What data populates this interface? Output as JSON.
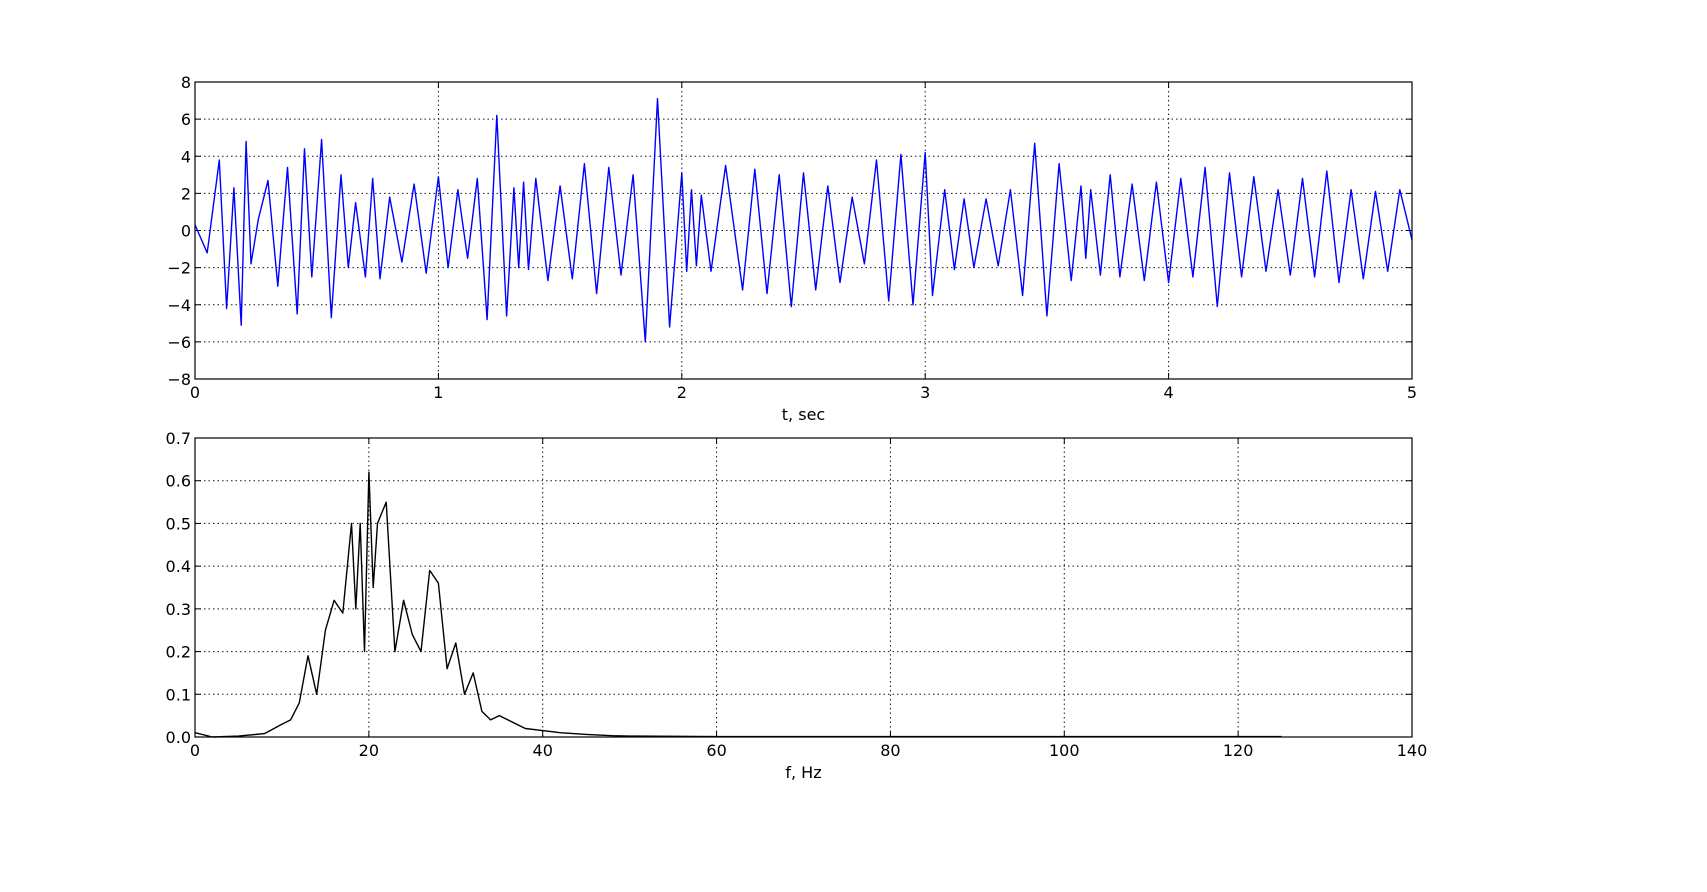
{
  "chart_data": [
    {
      "type": "line",
      "id": "time-signal",
      "title": "",
      "xlabel": "t, sec",
      "ylabel": "",
      "xlim": [
        0,
        5
      ],
      "ylim": [
        -8,
        8
      ],
      "xticks": [
        0,
        1,
        2,
        3,
        4,
        5
      ],
      "yticks": [
        -8,
        -6,
        -4,
        -2,
        0,
        2,
        4,
        6,
        8
      ],
      "grid": true,
      "color": "#0000ff",
      "series": [
        {
          "x": [
            0,
            0.05,
            0.1,
            0.13,
            0.16,
            0.19,
            0.21,
            0.23,
            0.26,
            0.3,
            0.34,
            0.38,
            0.42,
            0.45,
            0.48,
            0.52,
            0.56,
            0.6,
            0.63,
            0.66,
            0.7,
            0.73,
            0.76,
            0.8,
            0.85,
            0.9,
            0.95,
            1.0,
            1.04,
            1.08,
            1.12,
            1.16,
            1.2,
            1.24,
            1.28,
            1.31,
            1.33,
            1.35,
            1.37,
            1.4,
            1.45,
            1.5,
            1.55,
            1.6,
            1.65,
            1.7,
            1.75,
            1.8,
            1.85,
            1.9,
            1.95,
            2.0,
            2.02,
            2.04,
            2.06,
            2.08,
            2.12,
            2.18,
            2.25,
            2.3,
            2.35,
            2.4,
            2.45,
            2.5,
            2.55,
            2.6,
            2.65,
            2.7,
            2.75,
            2.8,
            2.85,
            2.9,
            2.95,
            3.0,
            3.03,
            3.08,
            3.12,
            3.16,
            3.2,
            3.25,
            3.3,
            3.35,
            3.4,
            3.45,
            3.5,
            3.55,
            3.6,
            3.64,
            3.66,
            3.68,
            3.72,
            3.76,
            3.8,
            3.85,
            3.9,
            3.95,
            4.0,
            4.05,
            4.1,
            4.15,
            4.2,
            4.25,
            4.3,
            4.35,
            4.4,
            4.45,
            4.5,
            4.55,
            4.6,
            4.65,
            4.7,
            4.75,
            4.8,
            4.85,
            4.9,
            4.95,
            5.0
          ],
          "y": [
            0.3,
            -1.2,
            3.8,
            -4.2,
            2.3,
            -5.1,
            4.8,
            -1.8,
            0.6,
            2.7,
            -3.0,
            3.4,
            -4.5,
            4.4,
            -2.5,
            4.9,
            -4.7,
            3.0,
            -2.0,
            1.5,
            -2.5,
            2.8,
            -2.6,
            1.8,
            -1.7,
            2.5,
            -2.3,
            2.9,
            -2.0,
            2.2,
            -1.5,
            2.8,
            -4.8,
            6.2,
            -4.6,
            2.3,
            -2.0,
            2.6,
            -2.1,
            2.8,
            -2.7,
            2.4,
            -2.6,
            3.6,
            -3.4,
            3.4,
            -2.4,
            3.0,
            -6.0,
            7.1,
            -5.2,
            3.1,
            -2.2,
            2.2,
            -1.9,
            1.9,
            -2.2,
            3.5,
            -3.2,
            3.3,
            -3.4,
            3.0,
            -4.1,
            3.1,
            -3.2,
            2.4,
            -2.8,
            1.8,
            -1.8,
            3.8,
            -3.8,
            4.1,
            -4.0,
            4.2,
            -3.5,
            2.2,
            -2.1,
            1.7,
            -2.0,
            1.7,
            -1.9,
            2.2,
            -3.5,
            4.7,
            -4.6,
            3.6,
            -2.7,
            2.4,
            -1.5,
            2.2,
            -2.4,
            3.0,
            -2.5,
            2.5,
            -2.7,
            2.6,
            -2.8,
            2.8,
            -2.5,
            3.4,
            -4.1,
            3.1,
            -2.5,
            2.9,
            -2.2,
            2.2,
            -2.4,
            2.8,
            -2.5,
            3.2,
            -2.8,
            2.2,
            -2.6,
            2.1,
            -2.2,
            2.2,
            -0.5
          ]
        }
      ]
    },
    {
      "type": "line",
      "id": "spectrum",
      "title": "",
      "xlabel": "f, Hz",
      "ylabel": "",
      "xlim": [
        0,
        140
      ],
      "ylim": [
        0,
        0.7
      ],
      "xticks": [
        0,
        20,
        40,
        60,
        80,
        100,
        120,
        140
      ],
      "yticks": [
        0.0,
        0.1,
        0.2,
        0.3,
        0.4,
        0.5,
        0.6,
        0.7
      ],
      "ytick_labels": [
        "0.0",
        "0.1",
        "0.2",
        "0.3",
        "0.4",
        "0.5",
        "0.6",
        "0.7"
      ],
      "grid": true,
      "color": "#000000",
      "series": [
        {
          "x": [
            0,
            2,
            5,
            8,
            10,
            11,
            12,
            13,
            14,
            15,
            16,
            17,
            18,
            18.5,
            19,
            19.5,
            20,
            20.5,
            21,
            22,
            23,
            24,
            25,
            26,
            27,
            28,
            29,
            30,
            31,
            32,
            33,
            34,
            35,
            36,
            38,
            40,
            42,
            45,
            48,
            50,
            60,
            80,
            100,
            120,
            125
          ],
          "y": [
            0.01,
            0.0,
            0.002,
            0.008,
            0.03,
            0.04,
            0.08,
            0.19,
            0.1,
            0.25,
            0.32,
            0.29,
            0.5,
            0.3,
            0.5,
            0.2,
            0.62,
            0.35,
            0.5,
            0.55,
            0.2,
            0.32,
            0.24,
            0.2,
            0.39,
            0.36,
            0.16,
            0.22,
            0.1,
            0.15,
            0.06,
            0.04,
            0.05,
            0.04,
            0.02,
            0.015,
            0.01,
            0.006,
            0.003,
            0.002,
            0.001,
            0.001,
            0.001,
            0.001,
            0.001
          ]
        }
      ]
    }
  ]
}
